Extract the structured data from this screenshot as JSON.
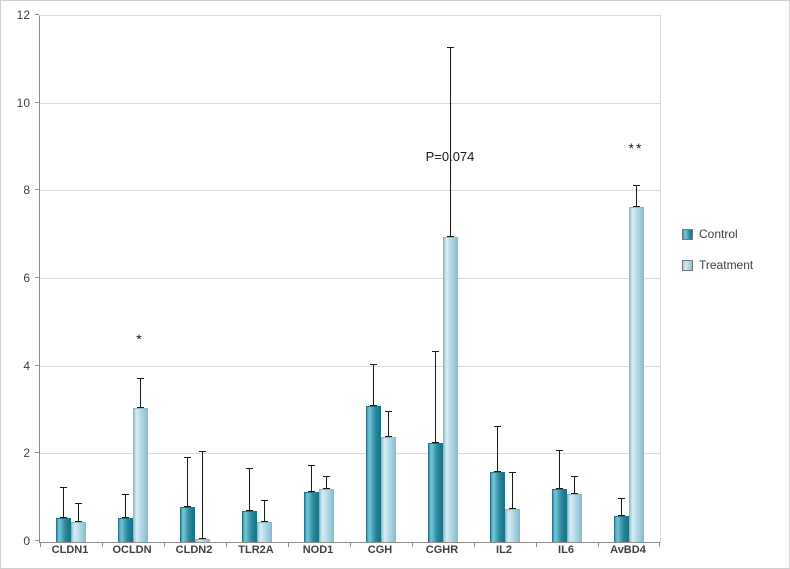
{
  "chart_data": {
    "type": "bar",
    "title": "",
    "xlabel": "",
    "ylabel": "",
    "categories": [
      "CLDN1",
      "OCLDN",
      "CLDN2",
      "TLR2A",
      "NOD1",
      "CGH",
      "CGHR",
      "IL2",
      "IL6",
      "AvBD4"
    ],
    "series": [
      {
        "name": "Control",
        "color": "#2e8ca1",
        "values": [
          0.55,
          0.55,
          0.8,
          0.7,
          1.15,
          3.1,
          2.25,
          1.6,
          1.2,
          0.6
        ],
        "errors_up": [
          0.7,
          0.55,
          1.15,
          1.0,
          0.6,
          0.95,
          2.1,
          1.05,
          0.9,
          0.4
        ]
      },
      {
        "name": "Treatment",
        "color": "#abd6e4",
        "values": [
          0.45,
          3.05,
          0.07,
          0.45,
          1.2,
          2.4,
          6.95,
          0.75,
          1.1,
          7.65
        ],
        "errors_up": [
          0.45,
          0.7,
          2.0,
          0.5,
          0.3,
          0.6,
          4.35,
          0.85,
          0.4,
          0.5
        ]
      }
    ],
    "ylim": [
      0,
      12
    ],
    "ytick_step": 2,
    "ytick_labels": [
      "0",
      "2",
      "4",
      "6",
      "8",
      "10",
      "12"
    ],
    "grid": true,
    "legend_position": "right",
    "annotations": [
      {
        "text": "*",
        "category": "OCLDN",
        "series": "Treatment",
        "y": 4.5,
        "style": "stars"
      },
      {
        "text": "P=0.074",
        "category": "CGHR",
        "series": "Treatment",
        "y": 8.65,
        "style": "plain"
      },
      {
        "text": "**",
        "category": "AvBD4",
        "series": "Treatment",
        "y": 8.85,
        "style": "stars"
      }
    ]
  },
  "colors": {
    "control": "#2e8ca1",
    "treatment": "#abd6e4",
    "grid": "#d9d9d9",
    "axis": "#8c8c8c",
    "text": "#3f3f3f"
  }
}
